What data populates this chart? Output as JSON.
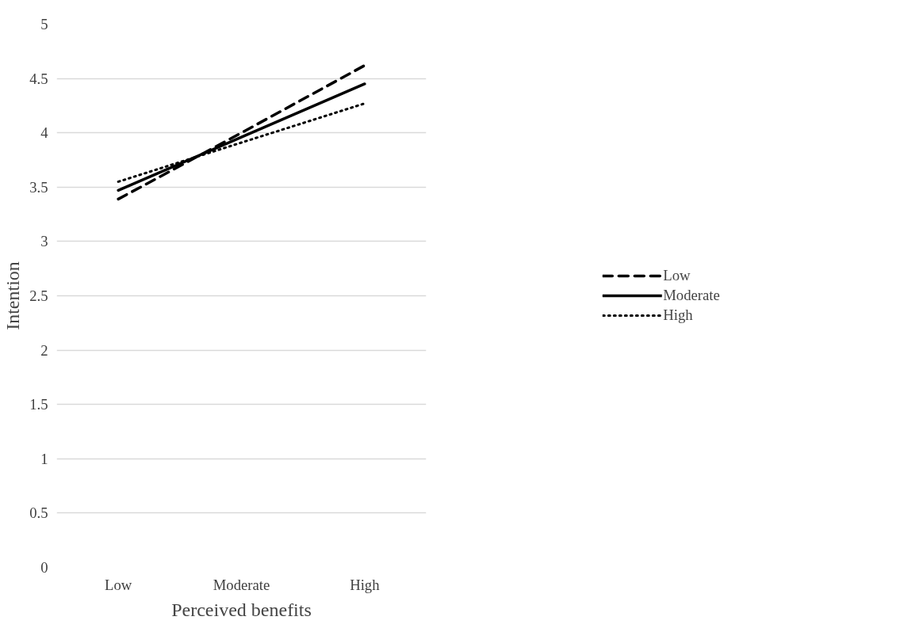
{
  "chart_data": {
    "type": "line",
    "xlabel": "Perceived benefits",
    "ylabel": "Intention",
    "categories": [
      "Low",
      "Moderate",
      "High"
    ],
    "series": [
      {
        "name": "Low",
        "color": "#000000",
        "values": [
          3.39,
          4.0,
          4.62
        ],
        "line_style": "dashed"
      },
      {
        "name": "Moderate",
        "color": "#000000",
        "values": [
          3.47,
          3.96,
          4.45
        ],
        "line_style": "solid"
      },
      {
        "name": "High",
        "color": "#000000",
        "values": [
          3.55,
          3.91,
          4.27
        ],
        "line_style": "dotted"
      }
    ],
    "ylim": [
      0,
      5
    ],
    "yticks": [
      0,
      0.5,
      1,
      1.5,
      2,
      2.5,
      3,
      3.5,
      4,
      4.5,
      5
    ],
    "grid": "y",
    "legend": "right",
    "marker": "none"
  }
}
